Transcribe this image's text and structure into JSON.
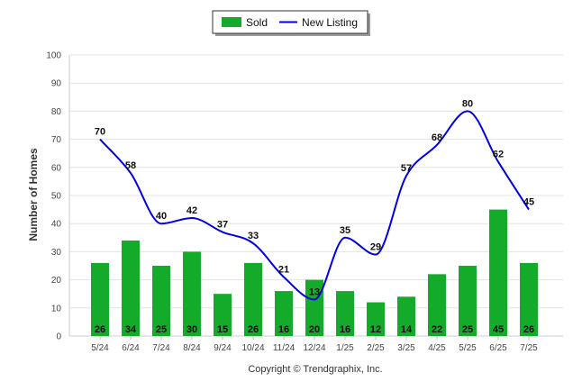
{
  "chart_data": {
    "type": "bar",
    "title": "",
    "xlabel": "",
    "ylabel": "Number of Homes",
    "ylim": [
      0,
      100
    ],
    "yticks": [
      0,
      10,
      20,
      30,
      40,
      50,
      60,
      70,
      80,
      90,
      100
    ],
    "grid": true,
    "legend_position": "top-center",
    "categories": [
      "5/24",
      "6/24",
      "7/24",
      "8/24",
      "9/24",
      "10/24",
      "11/24",
      "12/24",
      "1/25",
      "2/25",
      "3/25",
      "4/25",
      "5/25",
      "6/25",
      "7/25"
    ],
    "series": [
      {
        "name": "Sold",
        "type": "bar",
        "color": "#14aa2a",
        "values": [
          26,
          34,
          25,
          30,
          15,
          26,
          16,
          20,
          16,
          12,
          14,
          22,
          25,
          45,
          26
        ]
      },
      {
        "name": "New Listing",
        "type": "line",
        "color": "#0000e6",
        "values": [
          70,
          58,
          40,
          42,
          37,
          33,
          21,
          13,
          35,
          29,
          57,
          68,
          80,
          62,
          45
        ]
      }
    ]
  },
  "footer": {
    "copyright": "Copyright © Trendgraphix, Inc."
  }
}
